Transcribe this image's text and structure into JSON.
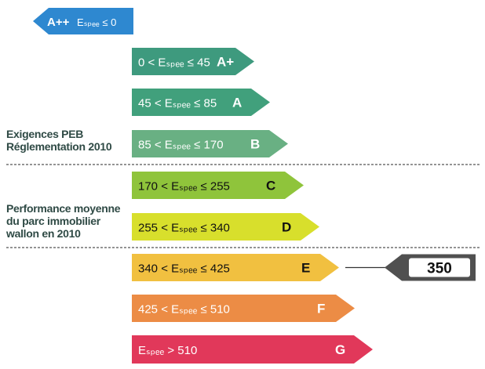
{
  "bands": [
    {
      "range": "Eₛₚₑₑ ≤ 0",
      "letter": "A++",
      "color": "#2e88d0",
      "text_color": "#ffffff"
    },
    {
      "range": "0 < Eₛₚₑₑ ≤ 45",
      "letter": "A+",
      "color": "#3e9a7e",
      "text_color": "#ffffff"
    },
    {
      "range": "45 < Eₛₚₑₑ ≤ 85",
      "letter": "A",
      "color": "#41a07c",
      "text_color": "#ffffff"
    },
    {
      "range": "85 < Eₛₚₑₑ ≤ 170",
      "letter": "B",
      "color": "#69b083",
      "text_color": "#ffffff"
    },
    {
      "range": "170 < Eₛₚₑₑ ≤ 255",
      "letter": "C",
      "color": "#8fc43b",
      "text_color": "#111111"
    },
    {
      "range": "255 < Eₛₚₑₑ ≤ 340",
      "letter": "D",
      "color": "#d8df2c",
      "text_color": "#111111"
    },
    {
      "range": "340 < Eₛₚₑₑ ≤ 425",
      "letter": "E",
      "color": "#f1c040",
      "text_color": "#111111"
    },
    {
      "range": "425 < Eₛₚₑₑ ≤ 510",
      "letter": "F",
      "color": "#ec8c45",
      "text_color": "#ffffff"
    },
    {
      "range": "Eₛₚₑₑ > 510",
      "letter": "G",
      "color": "#e1385a",
      "text_color": "#ffffff"
    }
  ],
  "labels": {
    "peb_line1": "Exigences PEB",
    "peb_line2": "Réglementation 2010",
    "perf_line1": "Performance moyenne",
    "perf_line2": "du parc immobilier",
    "perf_line3": "wallon en 2010"
  },
  "indicator": {
    "value": "350",
    "band_letter": "E",
    "color": "#505050"
  }
}
